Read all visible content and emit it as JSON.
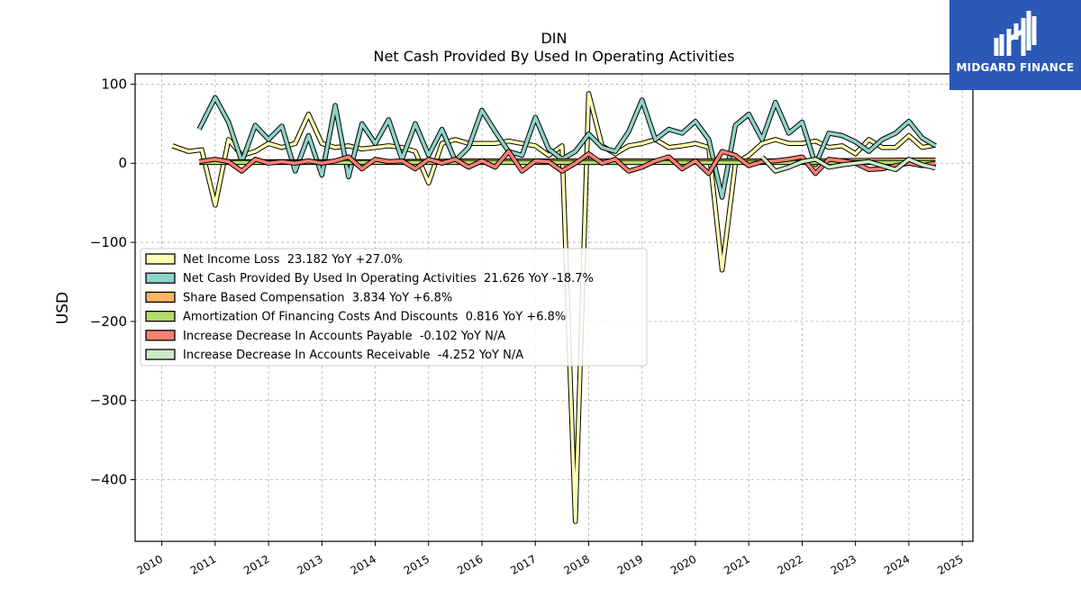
{
  "logo": {
    "text": "MIDGARD FINANCE",
    "color": "#2b59b5"
  },
  "chart_data": {
    "type": "line",
    "title": "DIN",
    "subtitle": "Net Cash Provided By Used In Operating Activities",
    "ylabel": "USD",
    "xlabel": "",
    "xlim": [
      2009.5,
      2025.2
    ],
    "ylim": [
      -478,
      113
    ],
    "x_ticks": [
      2010,
      2011,
      2012,
      2013,
      2014,
      2015,
      2016,
      2017,
      2018,
      2019,
      2020,
      2021,
      2022,
      2023,
      2024,
      2025
    ],
    "y_ticks": [
      100,
      0,
      -100,
      -200,
      -300,
      -400
    ],
    "y_tick_labels": [
      "100",
      "0",
      "−100",
      "−200",
      "−300",
      "−400"
    ],
    "grid": true,
    "legend_position": "center-left",
    "series": [
      {
        "name": "Net Income Loss",
        "legend": "Net Income Loss  23.182 YoY +27.0%",
        "color": "#ffffb3",
        "points": [
          [
            2010.2,
            22
          ],
          [
            2010.5,
            15
          ],
          [
            2010.75,
            17
          ],
          [
            2011.0,
            -53
          ],
          [
            2011.25,
            30
          ],
          [
            2011.5,
            10
          ],
          [
            2011.75,
            15
          ],
          [
            2012.0,
            25
          ],
          [
            2012.25,
            20
          ],
          [
            2012.5,
            25
          ],
          [
            2012.75,
            62
          ],
          [
            2013.0,
            25
          ],
          [
            2013.25,
            20
          ],
          [
            2013.5,
            22
          ],
          [
            2013.75,
            18
          ],
          [
            2014.0,
            20
          ],
          [
            2014.25,
            22
          ],
          [
            2014.5,
            20
          ],
          [
            2014.75,
            15
          ],
          [
            2015.0,
            -25
          ],
          [
            2015.25,
            25
          ],
          [
            2015.5,
            30
          ],
          [
            2015.75,
            25
          ],
          [
            2016.0,
            25
          ],
          [
            2016.25,
            25
          ],
          [
            2016.5,
            28
          ],
          [
            2016.75,
            25
          ],
          [
            2017.0,
            22
          ],
          [
            2017.25,
            10
          ],
          [
            2017.5,
            22
          ],
          [
            2017.75,
            -453
          ],
          [
            2018.0,
            88
          ],
          [
            2018.25,
            22
          ],
          [
            2018.5,
            12
          ],
          [
            2018.75,
            22
          ],
          [
            2019.0,
            25
          ],
          [
            2019.25,
            30
          ],
          [
            2019.5,
            20
          ],
          [
            2019.75,
            22
          ],
          [
            2020.0,
            25
          ],
          [
            2020.25,
            20
          ],
          [
            2020.5,
            -135
          ],
          [
            2020.75,
            0
          ],
          [
            2021.0,
            10
          ],
          [
            2021.25,
            25
          ],
          [
            2021.5,
            30
          ],
          [
            2021.75,
            25
          ],
          [
            2022.0,
            25
          ],
          [
            2022.25,
            28
          ],
          [
            2022.5,
            20
          ],
          [
            2022.75,
            22
          ],
          [
            2023.0,
            12
          ],
          [
            2023.25,
            30
          ],
          [
            2023.5,
            20
          ],
          [
            2023.75,
            20
          ],
          [
            2024.0,
            35
          ],
          [
            2024.25,
            20
          ],
          [
            2024.5,
            23
          ]
        ]
      },
      {
        "name": "Net Cash Provided By Used In Operating Activities",
        "legend": "Net Cash Provided By Used In Operating Activities  21.626 YoY -18.7%",
        "color": "#8dd3c7",
        "points": [
          [
            2010.7,
            43
          ],
          [
            2011.0,
            83
          ],
          [
            2011.25,
            52
          ],
          [
            2011.5,
            2
          ],
          [
            2011.75,
            48
          ],
          [
            2012.0,
            30
          ],
          [
            2012.25,
            47
          ],
          [
            2012.5,
            -10
          ],
          [
            2012.75,
            35
          ],
          [
            2013.0,
            -15
          ],
          [
            2013.25,
            73
          ],
          [
            2013.5,
            -17
          ],
          [
            2013.75,
            50
          ],
          [
            2014.0,
            25
          ],
          [
            2014.25,
            55
          ],
          [
            2014.5,
            5
          ],
          [
            2014.75,
            50
          ],
          [
            2015.0,
            10
          ],
          [
            2015.25,
            43
          ],
          [
            2015.5,
            3
          ],
          [
            2015.75,
            20
          ],
          [
            2016.0,
            67
          ],
          [
            2016.25,
            40
          ],
          [
            2016.5,
            15
          ],
          [
            2016.75,
            10
          ],
          [
            2017.0,
            58
          ],
          [
            2017.25,
            18
          ],
          [
            2017.5,
            5
          ],
          [
            2017.75,
            15
          ],
          [
            2018.0,
            37
          ],
          [
            2018.25,
            20
          ],
          [
            2018.5,
            15
          ],
          [
            2018.75,
            40
          ],
          [
            2019.0,
            80
          ],
          [
            2019.25,
            30
          ],
          [
            2019.5,
            43
          ],
          [
            2019.75,
            38
          ],
          [
            2020.0,
            53
          ],
          [
            2020.25,
            30
          ],
          [
            2020.5,
            -43
          ],
          [
            2020.75,
            48
          ],
          [
            2021.0,
            62
          ],
          [
            2021.25,
            30
          ],
          [
            2021.5,
            77
          ],
          [
            2021.75,
            38
          ],
          [
            2022.0,
            52
          ],
          [
            2022.25,
            -2
          ],
          [
            2022.5,
            38
          ],
          [
            2022.75,
            35
          ],
          [
            2023.0,
            27
          ],
          [
            2023.25,
            15
          ],
          [
            2023.5,
            30
          ],
          [
            2023.75,
            38
          ],
          [
            2024.0,
            53
          ],
          [
            2024.25,
            32
          ],
          [
            2024.5,
            22
          ]
        ]
      },
      {
        "name": "Share Based Compensation",
        "legend": "Share Based Compensation  3.834 YoY +6.8%",
        "color": "#fdb462",
        "points": [
          [
            2010.7,
            2
          ],
          [
            2012,
            2
          ],
          [
            2014,
            2
          ],
          [
            2016,
            3
          ],
          [
            2018,
            3
          ],
          [
            2020,
            3
          ],
          [
            2022,
            3
          ],
          [
            2024,
            4
          ],
          [
            2024.5,
            4
          ]
        ]
      },
      {
        "name": "Amortization Of Financing Costs And Discounts",
        "legend": "Amortization Of Financing Costs And Discounts  0.816 YoY +6.8%",
        "color": "#b3de69",
        "points": [
          [
            2010.7,
            1
          ],
          [
            2012,
            1
          ],
          [
            2014,
            1
          ],
          [
            2016,
            1
          ],
          [
            2018,
            1
          ],
          [
            2020,
            1
          ],
          [
            2022,
            1
          ],
          [
            2024,
            1
          ],
          [
            2024.5,
            1
          ]
        ]
      },
      {
        "name": "Increase Decrease In Accounts Payable",
        "legend": "Increase Decrease In Accounts Payable  -0.102 YoY N/A",
        "color": "#fb8072",
        "points": [
          [
            2010.7,
            2
          ],
          [
            2011.0,
            5
          ],
          [
            2011.25,
            2
          ],
          [
            2011.5,
            -10
          ],
          [
            2011.75,
            5
          ],
          [
            2012.0,
            0
          ],
          [
            2012.25,
            2
          ],
          [
            2012.5,
            0
          ],
          [
            2012.75,
            3
          ],
          [
            2013.0,
            0
          ],
          [
            2013.25,
            3
          ],
          [
            2013.5,
            8
          ],
          [
            2013.75,
            -7
          ],
          [
            2014.0,
            5
          ],
          [
            2014.25,
            2
          ],
          [
            2014.5,
            3
          ],
          [
            2014.75,
            -7
          ],
          [
            2015.0,
            5
          ],
          [
            2015.25,
            0
          ],
          [
            2015.5,
            5
          ],
          [
            2015.75,
            -5
          ],
          [
            2016.0,
            3
          ],
          [
            2016.25,
            -5
          ],
          [
            2016.5,
            15
          ],
          [
            2016.75,
            -10
          ],
          [
            2017.0,
            3
          ],
          [
            2017.25,
            2
          ],
          [
            2017.5,
            -10
          ],
          [
            2017.75,
            0
          ],
          [
            2018.0,
            12
          ],
          [
            2018.25,
            0
          ],
          [
            2018.5,
            5
          ],
          [
            2018.75,
            -10
          ],
          [
            2019.0,
            -5
          ],
          [
            2019.25,
            3
          ],
          [
            2019.5,
            8
          ],
          [
            2019.75,
            -7
          ],
          [
            2020.0,
            3
          ],
          [
            2020.25,
            -13
          ],
          [
            2020.5,
            15
          ],
          [
            2020.75,
            10
          ],
          [
            2021.0,
            -3
          ],
          [
            2021.25,
            2
          ],
          [
            2021.5,
            3
          ],
          [
            2021.75,
            5
          ],
          [
            2022.0,
            8
          ],
          [
            2022.25,
            -13
          ],
          [
            2022.5,
            5
          ],
          [
            2022.75,
            3
          ],
          [
            2023.0,
            0
          ],
          [
            2023.25,
            -8
          ],
          [
            2023.5,
            -7
          ],
          [
            2023.75,
            -3
          ],
          [
            2024.0,
            0
          ],
          [
            2024.25,
            -3
          ],
          [
            2024.5,
            0
          ]
        ]
      },
      {
        "name": "Increase Decrease In Accounts Receivable",
        "legend": "Increase Decrease In Accounts Receivable  -4.252 YoY N/A",
        "color": "#ccebc5",
        "points": [
          [
            2021.25,
            8
          ],
          [
            2021.5,
            -10
          ],
          [
            2021.75,
            -5
          ],
          [
            2022.0,
            2
          ],
          [
            2022.25,
            5
          ],
          [
            2022.5,
            -5
          ],
          [
            2022.75,
            -2
          ],
          [
            2023.0,
            0
          ],
          [
            2023.25,
            2
          ],
          [
            2023.5,
            -3
          ],
          [
            2023.75,
            -8
          ],
          [
            2024.0,
            5
          ],
          [
            2024.25,
            -2
          ],
          [
            2024.5,
            -6
          ]
        ]
      }
    ]
  }
}
